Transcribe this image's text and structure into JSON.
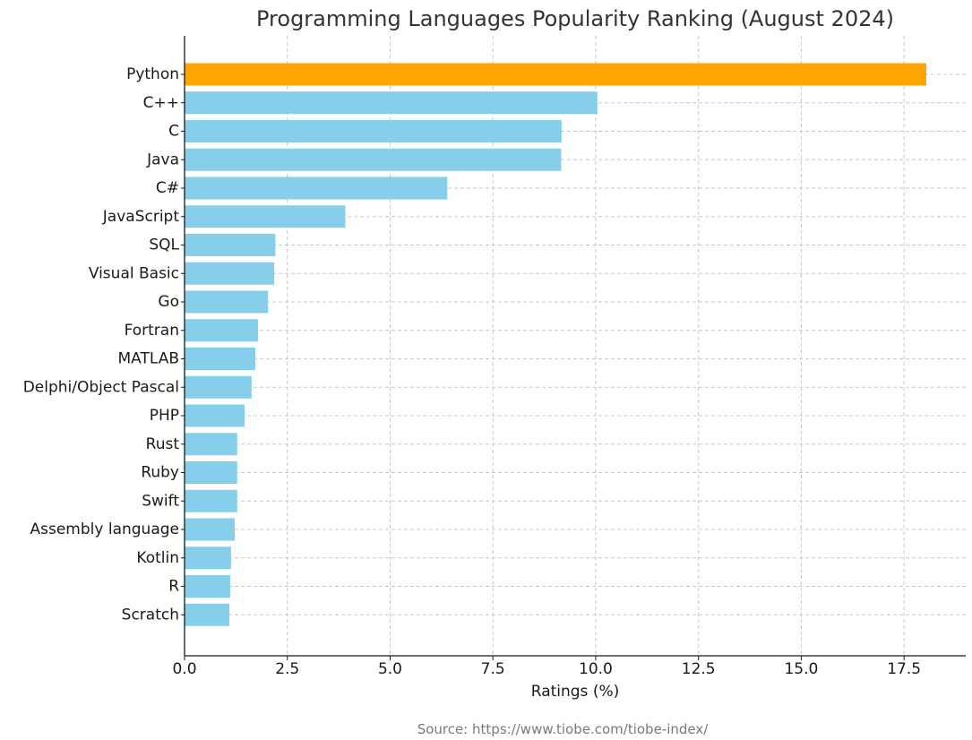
{
  "chart_data": {
    "type": "bar",
    "orientation": "horizontal",
    "title": "Programming Languages Popularity Ranking (August 2024)",
    "xlabel": "Ratings (%)",
    "ylabel": "",
    "xlim": [
      0,
      19
    ],
    "xticks": [
      0.0,
      2.5,
      5.0,
      7.5,
      10.0,
      12.5,
      15.0,
      17.5
    ],
    "xtick_labels": [
      "0.0",
      "2.5",
      "5.0",
      "7.5",
      "10.0",
      "12.5",
      "15.0",
      "17.5"
    ],
    "grid": true,
    "categories": [
      "Python",
      "C++",
      "C",
      "Java",
      "C#",
      "JavaScript",
      "SQL",
      "Visual Basic",
      "Go",
      "Fortran",
      "MATLAB",
      "Delphi/Object Pascal",
      "PHP",
      "Rust",
      "Ruby",
      "Swift",
      "Assembly language",
      "Kotlin",
      "R",
      "Scratch"
    ],
    "values": [
      18.04,
      10.04,
      9.17,
      9.16,
      6.39,
      3.91,
      2.21,
      2.18,
      2.03,
      1.79,
      1.72,
      1.63,
      1.46,
      1.28,
      1.28,
      1.28,
      1.22,
      1.13,
      1.11,
      1.09
    ],
    "highlight_color": "#FFA500",
    "bar_color": "#87CEEB",
    "source_note": "Source: https://www.tiobe.com/tiobe-index/"
  }
}
